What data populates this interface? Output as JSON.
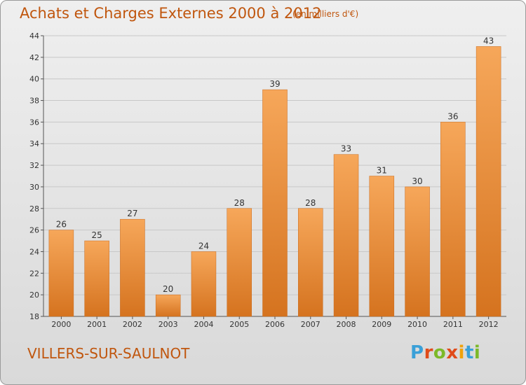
{
  "header": {
    "title": "Achats et Charges Externes 2000 à 2012",
    "unit": "(en milliers d'€)"
  },
  "footer": {
    "commune": "VILLERS-SUR-SAULNOT",
    "brand": "Proxiti"
  },
  "colors": {
    "title": "#c0560e",
    "bar_top": "#f6a75a",
    "bar_bottom": "#d5731f",
    "grid": "#c8c8c8"
  },
  "chart_data": {
    "type": "bar",
    "title": "Achats et Charges Externes 2000 à 2012",
    "subtitle": "(en milliers d'€)",
    "xlabel": "",
    "ylabel": "",
    "categories": [
      "2000",
      "2001",
      "2002",
      "2003",
      "2004",
      "2005",
      "2006",
      "2007",
      "2008",
      "2009",
      "2010",
      "2011",
      "2012"
    ],
    "values": [
      26,
      25,
      27,
      20,
      24,
      28,
      39,
      28,
      33,
      31,
      30,
      36,
      43
    ],
    "ylim": [
      18,
      44
    ],
    "yticks": [
      18,
      20,
      22,
      24,
      26,
      28,
      30,
      32,
      34,
      36,
      38,
      40,
      42,
      44
    ],
    "grid": true,
    "data_labels": true
  }
}
